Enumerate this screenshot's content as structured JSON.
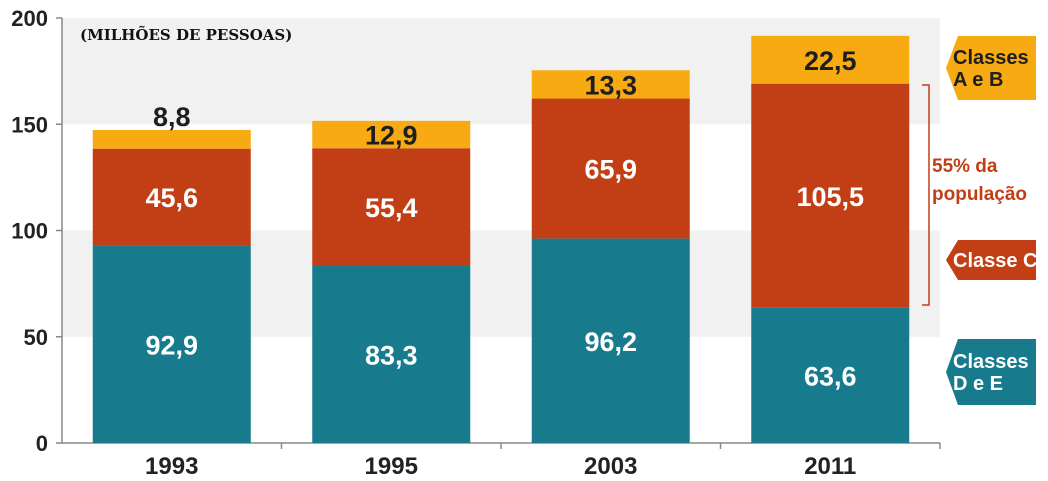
{
  "chart_data": {
    "type": "bar",
    "stacked": true,
    "unit_label": "(MILHÕES DE PESSOAS)",
    "categories": [
      "1993",
      "1995",
      "2003",
      "2011"
    ],
    "series": [
      {
        "name": "Classes D e E",
        "color": "#187b8d",
        "values": [
          92.9,
          83.3,
          96.2,
          63.6
        ],
        "labels": [
          "92,9",
          "83,3",
          "96,2",
          "63,6"
        ]
      },
      {
        "name": "Classe C",
        "color": "#c23f16",
        "values": [
          45.6,
          55.4,
          65.9,
          105.5
        ],
        "labels": [
          "45,6",
          "55,4",
          "65,9",
          "105,5"
        ]
      },
      {
        "name": "Classes A e B",
        "color": "#f7aa12",
        "values": [
          8.8,
          12.9,
          13.3,
          22.5
        ],
        "labels": [
          "8,8",
          "12,9",
          "13,3",
          "22,5"
        ]
      }
    ],
    "ylim": [
      0,
      200
    ],
    "yticks": [
      "0",
      "50",
      "100",
      "150",
      "200"
    ],
    "legend": [
      {
        "lines": [
          "Classes",
          "A e B"
        ],
        "color": "#f7aa12",
        "text_color": "#1e1e1e"
      },
      {
        "lines": [
          "Classe C"
        ],
        "color": "#c23f16",
        "text_color": "#ffffff"
      },
      {
        "lines": [
          "Classes",
          "D e E"
        ],
        "color": "#187b8d",
        "text_color": "#ffffff"
      }
    ],
    "annotation": {
      "lines": [
        "55% da",
        "população"
      ],
      "color": "#c23f16"
    }
  }
}
